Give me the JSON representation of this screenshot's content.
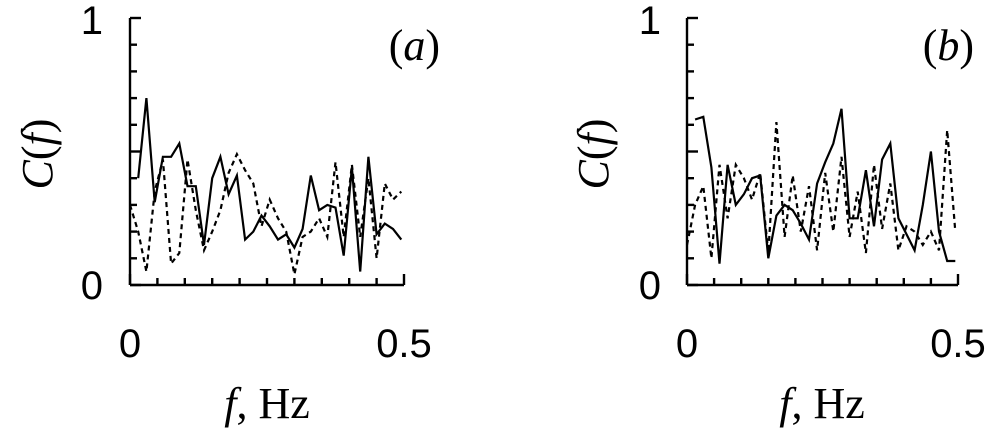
{
  "chart_data": [
    {
      "type": "line",
      "panel_label": "(a)",
      "panel_letter": "a",
      "xlabel_italic": "f",
      "xlabel_unit": ", Hz",
      "ylabel_italic_c": "C",
      "ylabel_italic_f": "f",
      "xlim": [
        0,
        0.5
      ],
      "ylim": [
        0,
        1
      ],
      "x_ticks": [
        "0",
        "0.5"
      ],
      "y_ticks": [
        "0",
        "1"
      ],
      "series": [
        {
          "style": "solid",
          "x": [
            0.015,
            0.03,
            0.045,
            0.06,
            0.075,
            0.09,
            0.105,
            0.12,
            0.135,
            0.15,
            0.165,
            0.18,
            0.195,
            0.21,
            0.225,
            0.24,
            0.255,
            0.27,
            0.285,
            0.3,
            0.315,
            0.33,
            0.345,
            0.36,
            0.375,
            0.39,
            0.405,
            0.42,
            0.435,
            0.45,
            0.465,
            0.48,
            0.495
          ],
          "y": [
            0.4,
            0.7,
            0.31,
            0.48,
            0.48,
            0.53,
            0.37,
            0.37,
            0.15,
            0.4,
            0.48,
            0.34,
            0.41,
            0.17,
            0.2,
            0.26,
            0.22,
            0.17,
            0.19,
            0.14,
            0.21,
            0.41,
            0.28,
            0.3,
            0.29,
            0.11,
            0.44,
            0.05,
            0.48,
            0.19,
            0.23,
            0.21,
            0.17
          ]
        },
        {
          "style": "dashed",
          "x": [
            0.0,
            0.015,
            0.03,
            0.045,
            0.06,
            0.075,
            0.09,
            0.105,
            0.12,
            0.135,
            0.15,
            0.165,
            0.18,
            0.195,
            0.21,
            0.225,
            0.24,
            0.255,
            0.27,
            0.285,
            0.3,
            0.315,
            0.33,
            0.345,
            0.36,
            0.375,
            0.39,
            0.405,
            0.42,
            0.435,
            0.45,
            0.465,
            0.48,
            0.495
          ],
          "y": [
            0.3,
            0.2,
            0.05,
            0.35,
            0.47,
            0.08,
            0.12,
            0.47,
            0.28,
            0.13,
            0.2,
            0.28,
            0.42,
            0.49,
            0.43,
            0.38,
            0.22,
            0.32,
            0.25,
            0.2,
            0.04,
            0.18,
            0.2,
            0.25,
            0.18,
            0.46,
            0.18,
            0.45,
            0.18,
            0.4,
            0.1,
            0.38,
            0.32,
            0.35
          ]
        }
      ]
    },
    {
      "type": "line",
      "panel_label": "(b)",
      "panel_letter": "b",
      "xlabel_italic": "f",
      "xlabel_unit": ", Hz",
      "ylabel_italic_c": "C",
      "ylabel_italic_f": "f",
      "xlim": [
        0,
        0.5
      ],
      "ylim": [
        0,
        1
      ],
      "x_ticks": [
        "0",
        "0.5"
      ],
      "y_ticks": [
        "0",
        "1"
      ],
      "series": [
        {
          "style": "solid",
          "x": [
            0.015,
            0.03,
            0.045,
            0.06,
            0.075,
            0.09,
            0.105,
            0.12,
            0.135,
            0.15,
            0.165,
            0.18,
            0.195,
            0.21,
            0.225,
            0.24,
            0.255,
            0.27,
            0.285,
            0.3,
            0.315,
            0.33,
            0.345,
            0.36,
            0.375,
            0.39,
            0.405,
            0.42,
            0.435,
            0.45,
            0.465,
            0.48,
            0.495
          ],
          "y": [
            0.62,
            0.63,
            0.44,
            0.08,
            0.45,
            0.3,
            0.34,
            0.4,
            0.41,
            0.1,
            0.26,
            0.3,
            0.28,
            0.23,
            0.17,
            0.38,
            0.46,
            0.53,
            0.66,
            0.25,
            0.25,
            0.43,
            0.22,
            0.47,
            0.53,
            0.25,
            0.19,
            0.13,
            0.3,
            0.5,
            0.2,
            0.09,
            0.09
          ]
        },
        {
          "style": "dashed",
          "x": [
            0.0,
            0.015,
            0.03,
            0.045,
            0.06,
            0.075,
            0.09,
            0.105,
            0.12,
            0.135,
            0.15,
            0.165,
            0.18,
            0.195,
            0.21,
            0.225,
            0.24,
            0.255,
            0.27,
            0.285,
            0.3,
            0.315,
            0.33,
            0.345,
            0.36,
            0.375,
            0.39,
            0.405,
            0.42,
            0.435,
            0.45,
            0.465,
            0.48,
            0.495
          ],
          "y": [
            0.15,
            0.3,
            0.37,
            0.1,
            0.45,
            0.25,
            0.45,
            0.4,
            0.32,
            0.42,
            0.12,
            0.61,
            0.18,
            0.41,
            0.2,
            0.37,
            0.13,
            0.42,
            0.2,
            0.48,
            0.18,
            0.35,
            0.12,
            0.45,
            0.21,
            0.38,
            0.13,
            0.22,
            0.2,
            0.15,
            0.2,
            0.13,
            0.58,
            0.2
          ]
        }
      ]
    }
  ]
}
